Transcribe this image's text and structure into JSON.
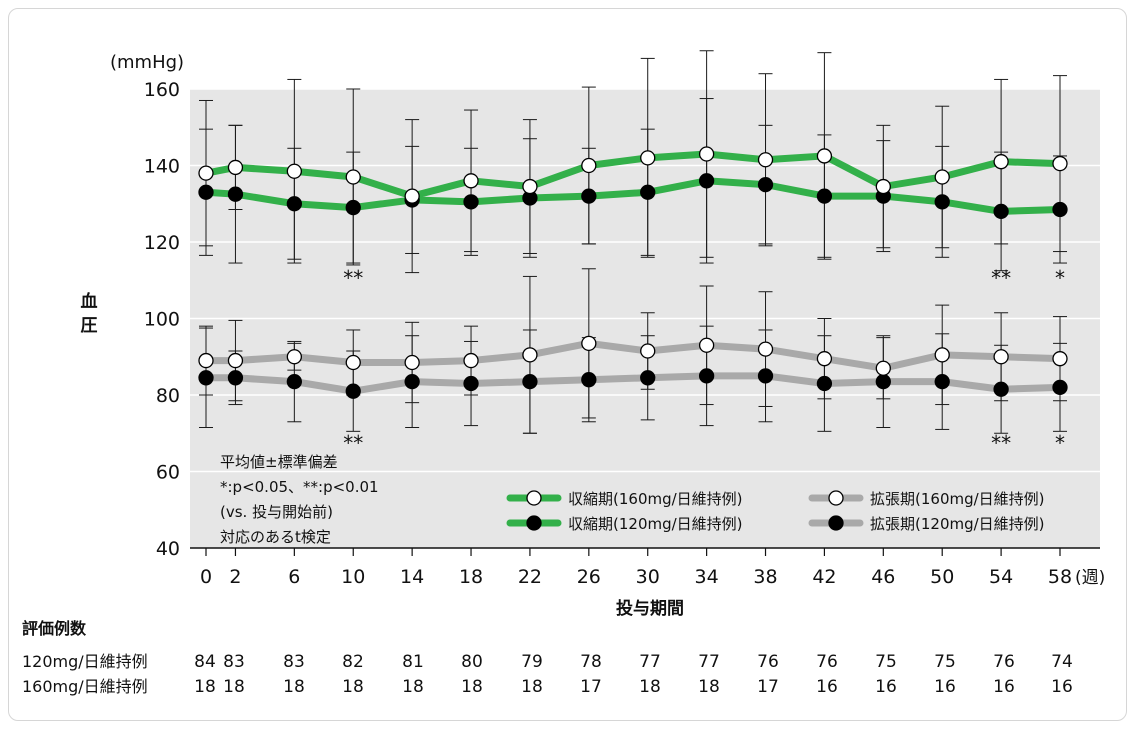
{
  "chart_data": {
    "type": "line",
    "ylabel_unit": "(mmHg)",
    "ylabel": "血\n圧",
    "xlabel": "投与期間",
    "x_unit": "(週)",
    "ylim": [
      40,
      160
    ],
    "yticks": [
      40,
      60,
      80,
      100,
      120,
      140,
      160
    ],
    "x": [
      0,
      2,
      6,
      10,
      14,
      18,
      22,
      26,
      30,
      34,
      38,
      42,
      46,
      50,
      54,
      58
    ],
    "grid": true,
    "legend_position": "bottom-right",
    "series": [
      {
        "name": "収縮期(160mg/日維持例)",
        "color": "#33b04a",
        "marker": "open",
        "values": [
          138,
          139.5,
          138.5,
          137,
          132,
          136,
          134.5,
          140,
          142,
          143,
          141.5,
          142.5,
          134.5,
          137,
          141,
          140.5
        ],
        "sd": [
          19,
          11,
          24,
          23,
          20,
          18.5,
          17.5,
          20.5,
          26,
          27,
          22.5,
          27,
          16,
          18.5,
          21.5,
          23
        ]
      },
      {
        "name": "収縮期(120mg/日維持例)",
        "color": "#33b04a",
        "marker": "filled",
        "values": [
          133,
          132.5,
          130,
          129,
          131,
          130.5,
          131.5,
          132,
          133,
          136,
          135,
          132,
          132,
          130.5,
          128,
          128.5
        ],
        "sd": [
          16.5,
          18,
          14.5,
          14.5,
          14,
          14,
          15.5,
          12.5,
          16.5,
          21.5,
          15.5,
          16,
          14.5,
          14.5,
          15.5,
          14
        ]
      },
      {
        "name": "拡張期(160mg/日維持例)",
        "color": "#a9a9a9",
        "marker": "open",
        "values": [
          89,
          89,
          90,
          88.5,
          88.5,
          89,
          90.5,
          93.5,
          91.5,
          93,
          92,
          89.5,
          87,
          90.5,
          90,
          89.5
        ],
        "sd": [
          9,
          10.5,
          3.5,
          8.5,
          10.5,
          9,
          20.5,
          19.5,
          10,
          15.5,
          15,
          10.5,
          8,
          13,
          11.5,
          11
        ]
      },
      {
        "name": "拡張期(120mg/日維持例)",
        "color": "#a9a9a9",
        "marker": "filled",
        "values": [
          84.5,
          84.5,
          83.5,
          81,
          83.5,
          83,
          83.5,
          84,
          84.5,
          85,
          85,
          83,
          83.5,
          83.5,
          81.5,
          82
        ],
        "sd": [
          13,
          7,
          10.5,
          10.5,
          12,
          11,
          13.5,
          11,
          11,
          13,
          12,
          12.5,
          12,
          12.5,
          11.5,
          11.5
        ]
      }
    ],
    "significance_marks": [
      {
        "x": 10,
        "level": "upper",
        "text": "**"
      },
      {
        "x": 54,
        "level": "upper",
        "text": "**"
      },
      {
        "x": 58,
        "level": "upper",
        "text": "*"
      },
      {
        "x": 10,
        "level": "lower",
        "text": "**"
      },
      {
        "x": 54,
        "level": "lower",
        "text": "**"
      },
      {
        "x": 58,
        "level": "lower",
        "text": "*"
      }
    ],
    "annotation_lines": [
      "平均値±標準偏差",
      "*:p<0.05、**:p<0.01",
      "(vs. 投与開始前)",
      "対応のあるt検定"
    ],
    "counts": {
      "title": "評価例数",
      "rows": [
        {
          "label": "120mg/日維持例",
          "values": [
            84,
            83,
            83,
            82,
            81,
            80,
            79,
            78,
            77,
            77,
            76,
            76,
            75,
            75,
            76,
            74
          ]
        },
        {
          "label": "160mg/日維持例",
          "values": [
            18,
            18,
            18,
            18,
            18,
            18,
            18,
            17,
            18,
            18,
            17,
            16,
            16,
            16,
            16,
            16
          ]
        }
      ]
    },
    "colors": {
      "plot_background": "#e6e6e6",
      "grid": "#ffffff",
      "systolic": "#33b04a",
      "diastolic": "#a9a9a9",
      "error_bar": "#1a1a1a"
    }
  }
}
